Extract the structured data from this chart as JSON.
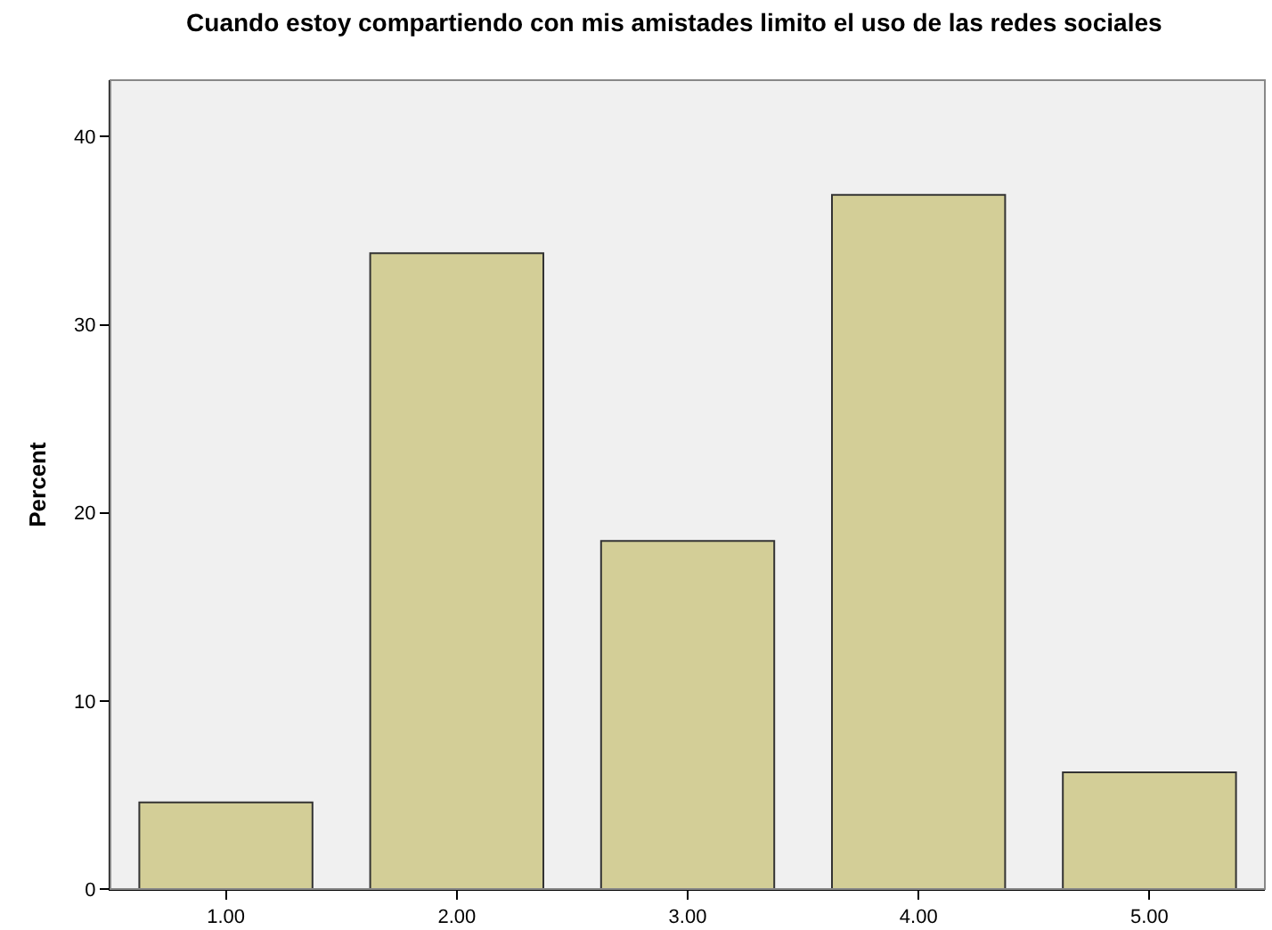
{
  "chart_data": {
    "type": "bar",
    "title": "Cuando estoy compartiendo con mis amistades limito el uso de las redes sociales",
    "ylabel": "Percent",
    "categories": [
      "1.00",
      "2.00",
      "3.00",
      "4.00",
      "5.00"
    ],
    "values": [
      4.6,
      33.8,
      18.5,
      36.9,
      6.2
    ],
    "color": "#d3ce97",
    "ylim": [
      0,
      43
    ],
    "yticks": [
      0,
      10,
      20,
      30,
      40
    ],
    "grid": false
  }
}
